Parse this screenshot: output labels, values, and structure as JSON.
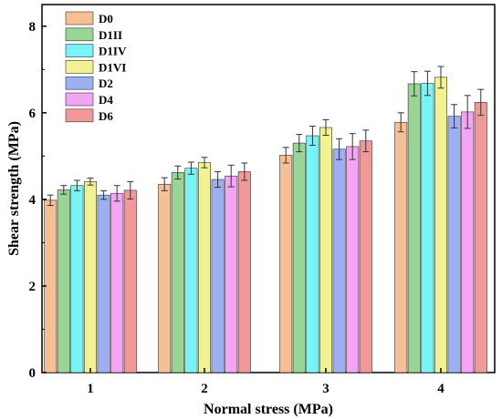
{
  "chart_data": {
    "type": "bar",
    "title": "",
    "xlabel": "Normal stress (MPa)",
    "ylabel": "Shear strength (MPa)",
    "categories": [
      "1",
      "2",
      "3",
      "4"
    ],
    "ylim": [
      0,
      8.5
    ],
    "yticks": [
      0,
      2,
      4,
      6,
      8
    ],
    "legend_position": "top-left",
    "grid": false,
    "error_bars": true,
    "series": [
      {
        "name": "D0",
        "color": "#f6bf94",
        "values": [
          3.98,
          4.35,
          5.02,
          5.78
        ],
        "errors": [
          0.12,
          0.15,
          0.18,
          0.22
        ]
      },
      {
        "name": "D1II",
        "color": "#99d595",
        "values": [
          4.22,
          4.62,
          5.3,
          6.67
        ],
        "errors": [
          0.1,
          0.15,
          0.2,
          0.28
        ]
      },
      {
        "name": "D1IV",
        "color": "#79f4f4",
        "values": [
          4.32,
          4.72,
          5.47,
          6.68
        ],
        "errors": [
          0.12,
          0.14,
          0.22,
          0.28
        ]
      },
      {
        "name": "D1VI",
        "color": "#f2f292",
        "values": [
          4.41,
          4.85,
          5.66,
          6.82
        ],
        "errors": [
          0.08,
          0.12,
          0.18,
          0.25
        ]
      },
      {
        "name": "D2",
        "color": "#9baff1",
        "values": [
          4.1,
          4.46,
          5.16,
          5.92
        ],
        "errors": [
          0.1,
          0.18,
          0.24,
          0.27
        ]
      },
      {
        "name": "D4",
        "color": "#f3a5f3",
        "values": [
          4.14,
          4.54,
          5.22,
          6.02
        ],
        "errors": [
          0.18,
          0.25,
          0.3,
          0.38
        ]
      },
      {
        "name": "D6",
        "color": "#f19898",
        "values": [
          4.21,
          4.64,
          5.35,
          6.24
        ],
        "errors": [
          0.2,
          0.2,
          0.25,
          0.3
        ]
      }
    ]
  }
}
